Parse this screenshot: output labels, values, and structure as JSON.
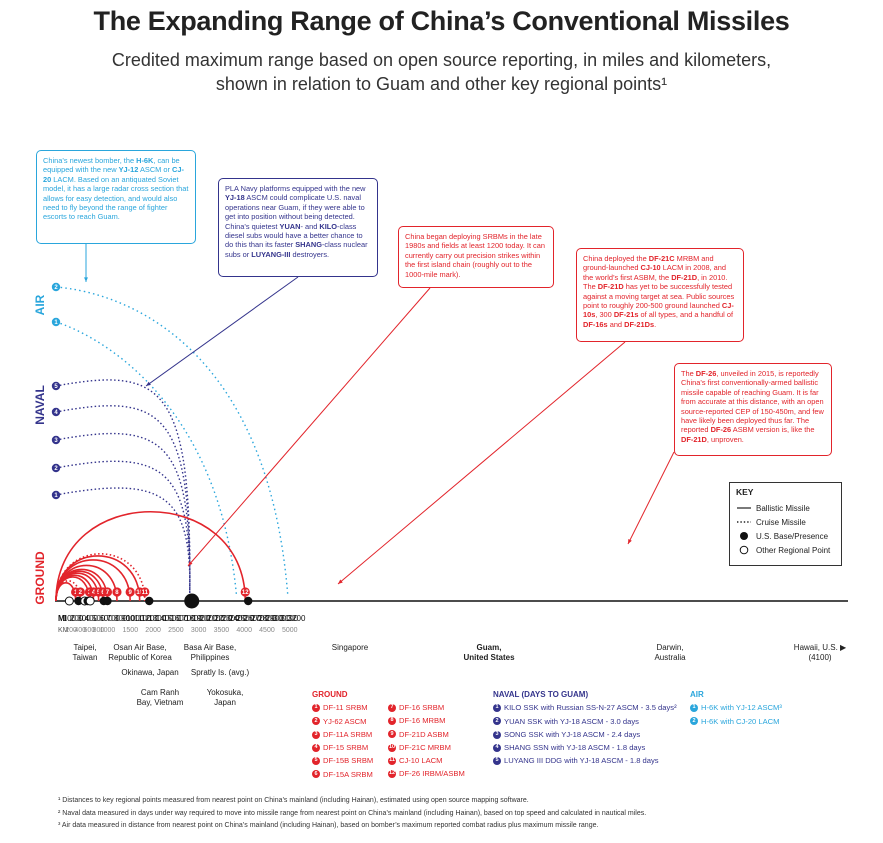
{
  "title": "The Expanding Range of China’s Conventional Missiles",
  "subtitle_line1": "Credited maximum range based on open source reporting, in miles and kilometers,",
  "subtitle_line2": "shown in relation to Guam and other key regional points¹",
  "colors": {
    "ground": "#e2242b",
    "naval": "#34348c",
    "air": "#2aa6dc",
    "text": "#222222"
  },
  "chart_data": {
    "type": "line",
    "x_unit_miles": "MI",
    "x_unit_km": "KM",
    "miles_ticks": [
      100,
      200,
      300,
      400,
      500,
      600,
      700,
      800,
      900,
      1000,
      1100,
      1200,
      1300,
      1400,
      1500,
      1600,
      1700,
      1800,
      1900,
      2000,
      2100,
      2200,
      2300,
      2400,
      2500,
      2600,
      2700,
      2800,
      2900,
      3000,
      3100,
      3200
    ],
    "km_ticks": [
      200,
      400,
      600,
      800,
      1000,
      1500,
      2000,
      2500,
      3000,
      3500,
      4000,
      4500,
      5000
    ],
    "ground": [
      {
        "n": "1",
        "name": "DF-11 SRBM",
        "range_mi": 186,
        "style": "solid"
      },
      {
        "n": "2",
        "name": "YJ-62 ASCM",
        "range_mi": 250,
        "style": "dotted"
      },
      {
        "n": "3",
        "name": "DF-11A SRBM",
        "range_mi": 375,
        "style": "solid"
      },
      {
        "n": "4",
        "name": "DF-15 SRBM",
        "range_mi": 430,
        "style": "solid"
      },
      {
        "n": "5",
        "name": "DF-15B SRBM",
        "range_mi": 500,
        "style": "solid"
      },
      {
        "n": "6",
        "name": "DF-15A SRBM",
        "range_mi": 560,
        "style": "solid"
      },
      {
        "n": "7",
        "name": "DF-16 SRBM",
        "range_mi": 620,
        "style": "solid"
      },
      {
        "n": "8",
        "name": "DF-16 MRBM",
        "range_mi": 750,
        "style": "solid"
      },
      {
        "n": "9",
        "name": "DF-21D ASBM",
        "range_mi": 930,
        "style": "solid"
      },
      {
        "n": "10",
        "name": "DF-21C MRBM",
        "range_mi": 1060,
        "style": "solid"
      },
      {
        "n": "11",
        "name": "CJ-10 LACM",
        "range_mi": 1130,
        "style": "dotted"
      },
      {
        "n": "12",
        "name": "DF-26 IRBM/ASBM",
        "range_mi": 2500,
        "style": "solid"
      }
    ],
    "naval": [
      {
        "n": "1",
        "label": "KILO SSK with Russian SS-N-27 ASCM - 3.5 days²",
        "reach_mi": 1730
      },
      {
        "n": "2",
        "label": "YUAN SSK with YJ-18 ASCM - 3.0 days",
        "reach_mi": 1600
      },
      {
        "n": "3",
        "label": "SONG SSK with YJ-18 ASCM - 2.4 days",
        "reach_mi": 1380
      },
      {
        "n": "4",
        "label": "SHANG SSN with YJ-18 ASCM - 1.8 days",
        "reach_mi": 1170
      },
      {
        "n": "5",
        "label": "LUYANG III DDG with YJ-18 ASCM - 1.8 days",
        "reach_mi": 1060
      }
    ],
    "air": [
      {
        "n": "1",
        "label": "H-6K with YJ-12 ASCM³",
        "reach_mi": 2380
      },
      {
        "n": "2",
        "label": "H-6K with CJ-20 LACM",
        "reach_mi": 3080
      }
    ],
    "points": [
      {
        "label": "Taipei, Taiwan",
        "mi": 100,
        "type": "regional"
      },
      {
        "label": "Osan Air Base, Republic of Korea",
        "mi": 225,
        "type": "base"
      },
      {
        "label": "Cam Ranh Bay, Vietnam",
        "mi": 310,
        "type": "regional"
      },
      {
        "label": "Okinawa, Japan",
        "mi": 350,
        "type": "base"
      },
      {
        "label": "Spratly Is. (avg.)",
        "mi": 385,
        "type": "regional"
      },
      {
        "label": "Basa Air Base, Philippines",
        "mi": 570,
        "type": "base"
      },
      {
        "label": "Yokosuka, Japan",
        "mi": 620,
        "type": "base"
      },
      {
        "label": "Singapore",
        "mi": 1190,
        "type": "base"
      },
      {
        "label": "Guam, United States",
        "mi": 1770,
        "type": "guam"
      },
      {
        "label": "Darwin, Australia",
        "mi": 2540,
        "type": "base"
      },
      {
        "label": "Hawaii, U.S.",
        "mi": 3200,
        "type": "offscale"
      }
    ]
  },
  "axis_labels": {
    "ground": "GROUND",
    "naval": "NAVAL",
    "air": "AIR"
  },
  "places": {
    "taipei": "Taipei,\nTaiwan",
    "osan": "Osan Air Base,\nRepublic of Korea",
    "okinawa": "Okinawa, Japan",
    "camranh": "Cam Ranh\nBay, Vietnam",
    "basa": "Basa Air Base,\nPhilippines",
    "spratly": "Spratly Is. (avg.)",
    "yokosuka": "Yokosuka,\nJapan",
    "singapore": "Singapore",
    "guam": "Guam,\nUnited States",
    "darwin": "Darwin,\nAustralia",
    "hawaii": "Hawaii, U.S. ▶\n(4100)"
  },
  "notes": {
    "air": "China’s newest bomber, the <b>H-6K</b>, can be equipped with the new <b>YJ-12</b> ASCM or <b>CJ-20</b> LACM. Based on an antiquated Soviet model, it has a large radar cross section that allows for easy detection, and would also need to fly beyond the range of fighter escorts to reach Guam.",
    "naval": "PLA Navy platforms equipped with the new <b>YJ-18</b> ASCM could complicate U.S. naval operations near Guam, if they were able to get into position without being detected. China’s quietest <b>YUAN</b>- and <b>KILO</b>-class diesel subs would have a better chance to do this than its faster <b>SHANG</b>-class nuclear subs or <b>LUYANG-III</b> destroyers.",
    "srbm": "China began deploying SRBMs in the late 1980s and fields at least 1200 today. It can currently carry out precision strikes within the first island chain (roughly out to the 1000-mile mark).",
    "df21": "China deployed the <b>DF-21C</b> MRBM and ground-launched <b>CJ-10</b> LACM in 2008, and the world’s first ASBM, the <b>DF-21D</b>, in 2010. The <b>DF-21D</b> has yet to be successfully tested against a moving target at sea. Public sources point to roughly 200-500 ground launched <b>CJ-10s</b>, 300 <b>DF-21s</b> of all types, and a handful of <b>DF-16s</b> and <b>DF-21Ds</b>.",
    "df26": "The <b>DF-26</b>, unveiled in 2015, is reportedly China’s first conventionally-armed ballistic missile capable of reaching Guam. It is far from accurate at this distance, with an open source-reported CEP of 150-450m, and few have likely been deployed thus far. The reported <b>DF-26</b> ASBM version is, like the <b>DF-21D</b>, unproven."
  },
  "key": {
    "title": "KEY",
    "ballistic": "Ballistic Missile",
    "cruise": "Cruise Missile",
    "base": "U.S. Base/Presence",
    "regional": "Other Regional Point"
  },
  "legend_heads": {
    "ground": "GROUND",
    "naval": "NAVAL (DAYS TO GUAM)",
    "air": "AIR"
  },
  "footnotes": {
    "f1": "¹ Distances to key regional points measured from nearest point on China’s mainland (including Hainan), estimated using open source mapping software.",
    "f2": "² Naval data measured in days under way required to move into missile range from nearest point on China’s mainland (including Hainan), based on top speed and calculated in nautical miles.",
    "f3": "³ Air data measured in distance from nearest point on China’s mainland (including Hainan), based on bomber’s maximum reported combat radius plus maximum missile range."
  }
}
